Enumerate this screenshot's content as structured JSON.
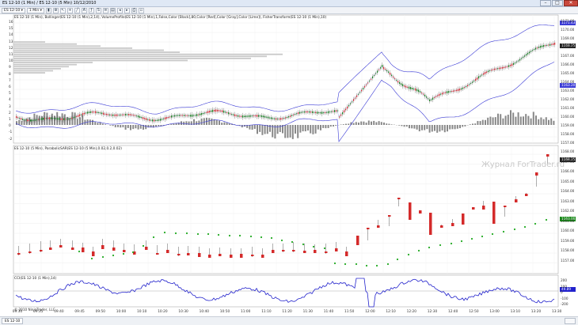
{
  "window": {
    "title": "ES 12-10 (1 Min) / ES 12-10 (5 Min)  10/12/2010",
    "buttons": {
      "minimize": "–",
      "maximize": "□",
      "close": "✕"
    }
  },
  "toolbar": {
    "instrument": "ES 12-10 ▾",
    "interval": "1 Min ▾"
  },
  "watermark": "Журнал ForTrader.ru",
  "copyright": "© 2010 NinjaTrader, LLC",
  "panels": {
    "top_label": "ES 12-10 (1 Min), Bollinger(ES 12-10 (1 Min),2,14), VolumeProfile(ES 12-10 (1 Min),1,False,Color [Black],80,Color [Red],Color [Gray],Color [Lime]), FisherTransform(ES 12-10 (1 Min),10)",
    "mid_label": "ES 12-10 (5 Min), ParabolicSAR(ES 12-10 (5 Min),0.02,0.2,0.02)",
    "bot_label": "CCI(ES 12-10 (1 Min),14)"
  },
  "top_right_tags": {
    "upper": "1171.43",
    "price": "1168.25",
    "lower": "1163.20"
  },
  "top_ylabels": [
    "1171.00",
    "1170.00",
    "1169.00",
    "1168.00",
    "1167.00",
    "1166.00",
    "1165.00",
    "1164.00",
    "1163.00",
    "1162.00",
    "1161.00",
    "1160.00",
    "1159.00",
    "1158.00",
    "1157.00"
  ],
  "top_left_labels": [
    "16",
    "15",
    "14",
    "13",
    "12",
    "11",
    "10",
    "9",
    "8",
    "7",
    "6",
    "5",
    "4",
    "3",
    "2",
    "1",
    "0",
    "-1",
    "-2"
  ],
  "mid_right_tag": "1168.25",
  "mid_sar_tag": "1163.00",
  "mid_ylabels": [
    "1168.00",
    "1167.00",
    "1166.00",
    "1165.00",
    "1164.00",
    "1163.00",
    "1162.00",
    "1161.00",
    "1160.00",
    "1159.00",
    "1158.00",
    "1157.00"
  ],
  "cci_right_tag": "49.89",
  "cci_ylabels": [
    "200",
    "100",
    "0",
    "-100",
    "-200"
  ],
  "x_labels": [
    "09:30",
    "09:35",
    "09:40",
    "09:45",
    "09:50",
    "10:00",
    "10:10",
    "10:20",
    "10:30",
    "10:40",
    "10:50",
    "11:00",
    "11:10",
    "11:20",
    "11:30",
    "11:40",
    "11:50",
    "12:00",
    "12:10",
    "12:20",
    "12:30",
    "12:40",
    "12:50",
    "13:00",
    "13:10",
    "13:20",
    "13:30"
  ],
  "status_tab": "ES 12-10",
  "colors": {
    "up": "#1a7f1a",
    "down": "#d42a2a",
    "band": "#3c3cd6",
    "cci": "#2222cc",
    "sar": "#22aa22",
    "hist": "#888888"
  }
}
